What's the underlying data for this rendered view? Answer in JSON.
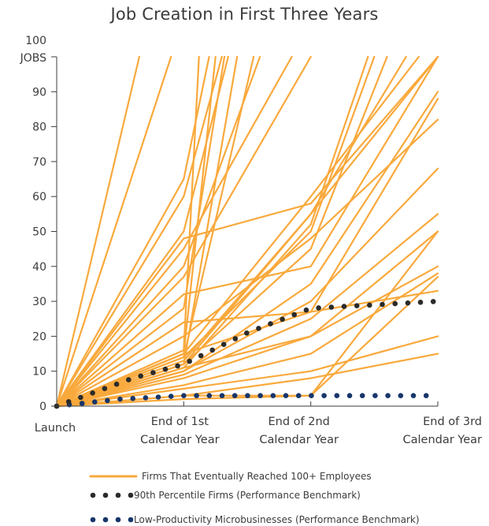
{
  "chart_data": {
    "type": "line",
    "title": "Job Creation in First Three Years",
    "ylabel": "JOBS",
    "ylim": [
      0,
      100
    ],
    "y_ticks": [
      "0",
      "10",
      "20",
      "30",
      "40",
      "50",
      "60",
      "70",
      "80",
      "90",
      "100"
    ],
    "x_ticks": [
      {
        "line1": "Launch",
        "line2": ""
      },
      {
        "line1": "End of 1st",
        "line2": "Calendar Year"
      },
      {
        "line1": "End of 2nd",
        "line2": "Calendar Year"
      },
      {
        "line1": "End of 3rd",
        "line2": "Calendar Year"
      }
    ],
    "xlim": [
      0,
      3
    ],
    "grid": false,
    "legend_position": "bottom",
    "colors": {
      "firms": "#f9a93c",
      "percentile": "#2b2b2b",
      "micro": "#17366b"
    },
    "series": [
      {
        "name": "Firms That Eventually Reached 100+ Employees",
        "style": "line",
        "lines": [
          [
            [
              0,
              0
            ],
            [
              0.65,
              100
            ]
          ],
          [
            [
              0,
              0
            ],
            [
              0.9,
              100
            ]
          ],
          [
            [
              0,
              0
            ],
            [
              1,
              50
            ],
            [
              1.35,
              100
            ]
          ],
          [
            [
              0,
              0
            ],
            [
              1,
              65
            ],
            [
              1.2,
              100
            ]
          ],
          [
            [
              0,
              0
            ],
            [
              1,
              60
            ],
            [
              1.3,
              100
            ]
          ],
          [
            [
              0,
              0
            ],
            [
              1,
              48
            ],
            [
              2,
              58
            ],
            [
              3,
              100
            ]
          ],
          [
            [
              0,
              0
            ],
            [
              1,
              37
            ],
            [
              2,
              100
            ]
          ],
          [
            [
              0,
              0
            ],
            [
              1,
              28
            ],
            [
              1.32,
              100
            ]
          ],
          [
            [
              0,
              0
            ],
            [
              1,
              32
            ],
            [
              2,
              40
            ],
            [
              3,
              100
            ]
          ],
          [
            [
              0,
              0
            ],
            [
              1,
              16
            ],
            [
              1.12,
              100
            ]
          ],
          [
            [
              0,
              0
            ],
            [
              1,
              15
            ],
            [
              1.25,
              100
            ]
          ],
          [
            [
              0,
              0
            ],
            [
              1,
              14
            ],
            [
              1.55,
              100
            ]
          ],
          [
            [
              0,
              0
            ],
            [
              1,
              12
            ],
            [
              1.42,
              100
            ]
          ],
          [
            [
              0,
              0
            ],
            [
              1,
              14
            ],
            [
              2,
              50
            ],
            [
              2.5,
              100
            ]
          ],
          [
            [
              0,
              0
            ],
            [
              1,
              13
            ],
            [
              2,
              55
            ],
            [
              2.75,
              100
            ]
          ],
          [
            [
              0,
              0
            ],
            [
              1,
              11
            ],
            [
              2,
              52
            ],
            [
              2.45,
              100
            ]
          ],
          [
            [
              0,
              0
            ],
            [
              1,
              12
            ],
            [
              2,
              45
            ],
            [
              2.6,
              100
            ]
          ],
          [
            [
              0,
              0
            ],
            [
              1,
              15
            ],
            [
              2,
              60
            ],
            [
              2.85,
              100
            ]
          ],
          [
            [
              0,
              0
            ],
            [
              1,
              10
            ],
            [
              2,
              35
            ],
            [
              3,
              90
            ]
          ],
          [
            [
              0,
              0
            ],
            [
              1,
              10
            ],
            [
              2,
              30
            ],
            [
              3,
              68
            ]
          ],
          [
            [
              0,
              0
            ],
            [
              1,
              12
            ],
            [
              2,
              55
            ],
            [
              3,
              100
            ]
          ],
          [
            [
              0,
              0
            ],
            [
              1,
              8
            ],
            [
              2,
              20
            ],
            [
              3,
              50
            ]
          ],
          [
            [
              0,
              0
            ],
            [
              1,
              9
            ],
            [
              2,
              25
            ],
            [
              3,
              55
            ]
          ],
          [
            [
              0,
              0
            ],
            [
              1,
              11
            ],
            [
              2,
              20
            ],
            [
              3,
              40
            ]
          ],
          [
            [
              0,
              0
            ],
            [
              1,
              6
            ],
            [
              2,
              15
            ],
            [
              3,
              38
            ]
          ],
          [
            [
              0,
              0
            ],
            [
              1,
              5
            ],
            [
              2,
              10
            ],
            [
              3,
              20
            ]
          ],
          [
            [
              0,
              0
            ],
            [
              1,
              3
            ],
            [
              2,
              8
            ],
            [
              3,
              15
            ]
          ],
          [
            [
              0,
              0
            ],
            [
              1,
              3
            ],
            [
              2,
              3
            ],
            [
              3,
              37
            ]
          ],
          [
            [
              0,
              0
            ],
            [
              1,
              2
            ],
            [
              2,
              3
            ],
            [
              3,
              50
            ]
          ],
          [
            [
              0,
              0
            ],
            [
              1,
              20
            ],
            [
              2,
              48
            ],
            [
              3,
              82
            ]
          ],
          [
            [
              0,
              0
            ],
            [
              1,
              24
            ],
            [
              2,
              27
            ],
            [
              3,
              33
            ]
          ],
          [
            [
              0,
              0
            ],
            [
              1,
              45
            ],
            [
              1.85,
              100
            ]
          ],
          [
            [
              0,
              0
            ],
            [
              1,
              40
            ],
            [
              1.6,
              100
            ]
          ],
          [
            [
              0,
              0
            ],
            [
              1,
              15
            ],
            [
              2,
              27
            ],
            [
              3,
              88
            ]
          ]
        ]
      },
      {
        "name": "90th Percentile Firms (Performance Benchmark)",
        "style": "dots",
        "points": [
          [
            0,
            0
          ],
          [
            0.6,
            8
          ],
          [
            1,
            12
          ],
          [
            1.5,
            21
          ],
          [
            2,
            28
          ],
          [
            2.5,
            29
          ],
          [
            3,
            30
          ]
        ]
      },
      {
        "name": "Low-Productivity Microbusinesses (Performance Benchmark)",
        "style": "dots",
        "points": [
          [
            0,
            0
          ],
          [
            0.5,
            2
          ],
          [
            1,
            3
          ],
          [
            2,
            3
          ],
          [
            3,
            3
          ]
        ]
      }
    ]
  }
}
